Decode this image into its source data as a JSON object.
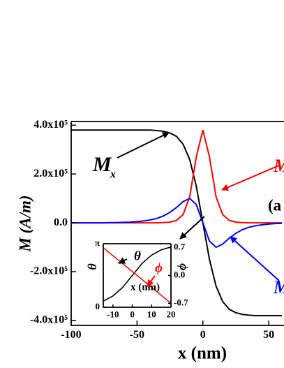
{
  "chart_data": [
    {
      "type": "line",
      "xlabel": "x (nm)",
      "ylabel": "M (A/m)",
      "x": [
        -100,
        -95,
        -90,
        -85,
        -80,
        -75,
        -70,
        -65,
        -60,
        -55,
        -50,
        -45,
        -40,
        -35,
        -30,
        -25,
        -20,
        -15,
        -10,
        -5,
        0,
        5,
        10,
        15,
        20,
        25,
        30,
        35,
        40,
        45,
        50,
        55,
        60
      ],
      "series": [
        {
          "color": "#000000",
          "values": [
            380000,
            380000,
            380000,
            380000,
            380000,
            380000,
            380000,
            380000,
            380000,
            380000,
            380000,
            380000,
            380000,
            378000,
            375000,
            368000,
            354000,
            322000,
            259000,
            150000,
            0,
            -150000,
            -259000,
            -322000,
            -354000,
            -368000,
            -375000,
            -378000,
            -380000,
            -380000,
            -380000,
            -380000,
            -380000
          ]
        },
        {
          "color": "#ff0000",
          "values": [
            0,
            0,
            0,
            0,
            0,
            0,
            0,
            0,
            0,
            0,
            0,
            0,
            0,
            0,
            1000,
            3000,
            10000,
            34000,
            107000,
            270000,
            380000,
            270000,
            107000,
            34000,
            10000,
            3000,
            1000,
            0,
            0,
            0,
            0,
            0,
            0
          ]
        },
        {
          "color": "#0000ff",
          "values": [
            0,
            0,
            0,
            0,
            0,
            0,
            1000,
            1000,
            2000,
            3000,
            5000,
            8000,
            12000,
            18000,
            28000,
            43000,
            63000,
            87000,
            100000,
            75000,
            0,
            -75000,
            -100000,
            -87000,
            -63000,
            -43000,
            -28000,
            -18000,
            -12000,
            -8000,
            -5000,
            -3000,
            -2000
          ]
        }
      ],
      "xlim": [
        -100,
        60
      ],
      "xticks": [
        -100,
        -50,
        0,
        50
      ],
      "ylim": [
        -420000,
        415000
      ],
      "yticks": [
        {
          "value": 400000,
          "label": "4.0x10⁵"
        },
        {
          "value": 200000,
          "label": "2.0x10⁵"
        },
        {
          "value": 0,
          "label": "0.0"
        },
        {
          "value": -200000,
          "label": "-2.0x10⁵"
        },
        {
          "value": -400000,
          "label": "-4.0x10⁵"
        }
      ],
      "annotations": [
        {
          "text": "M",
          "sub": "x",
          "color": "#000000"
        },
        {
          "text": "M",
          "color": "#ff0000"
        },
        {
          "text": "(a",
          "color": "#000000"
        },
        {
          "text": "M",
          "color": "#0000ff"
        }
      ]
    },
    {
      "type": "line",
      "xlabel": "x (nm)",
      "ylabel": "θ",
      "y2label": "ϕ",
      "x": [
        -15,
        -10,
        -5,
        0,
        5,
        10,
        15,
        20
      ],
      "series": [
        {
          "color": "#000000",
          "values": [
            0.3,
            0.56,
            0.98,
            1.571,
            2.16,
            2.58,
            2.84,
            2.98
          ]
        },
        {
          "color": "#ff0000",
          "axis": "y2",
          "values": [
            0.7,
            0.5,
            0.3,
            0.1,
            -0.1,
            -0.3,
            -0.5,
            -0.7
          ]
        }
      ],
      "xlim": [
        -15,
        20
      ],
      "xticks": [
        -10,
        0,
        10,
        20
      ],
      "ylim": [
        0,
        3.1416
      ],
      "yticks": [
        0,
        {
          "value": 3.1416,
          "label": "π"
        }
      ],
      "y2lim": [
        -0.8,
        0.8
      ],
      "y2ticks": [
        0.7,
        {
          "value": 0,
          "label": "0.0"
        },
        -0.7
      ],
      "annotations": [
        {
          "text": "θ",
          "color": "#000000"
        },
        {
          "text": "ϕ",
          "color": "#ff0000"
        }
      ]
    }
  ]
}
